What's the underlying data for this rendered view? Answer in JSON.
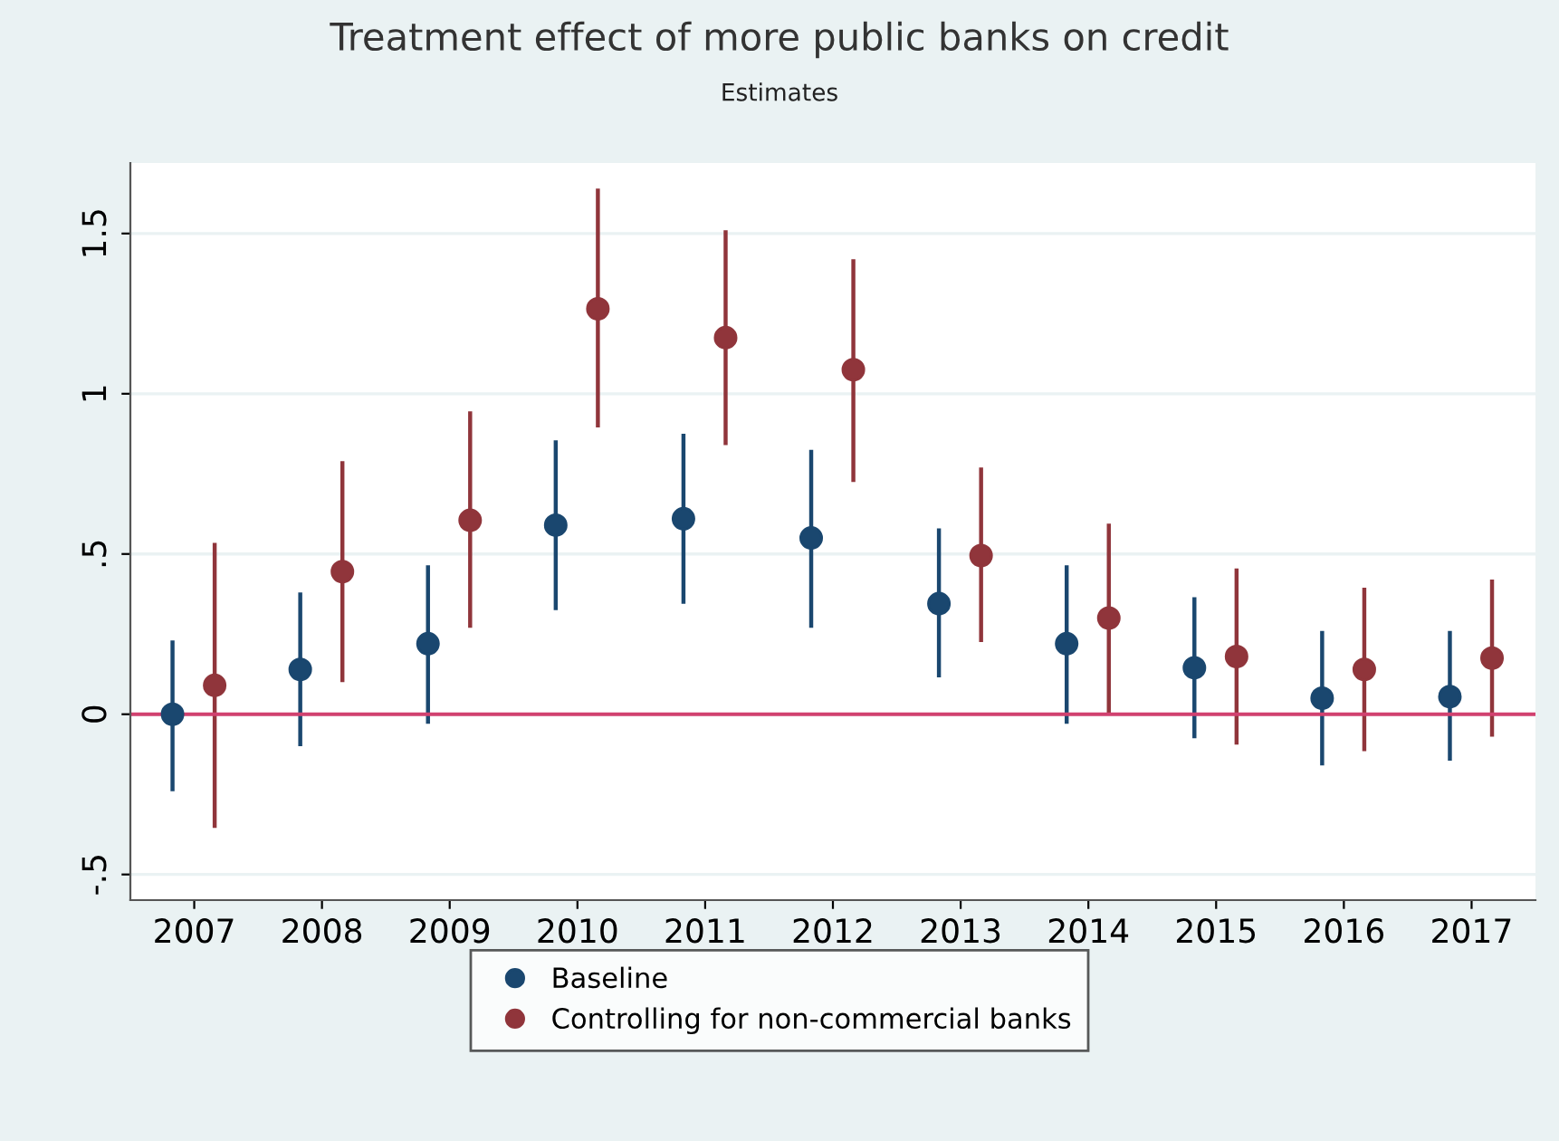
{
  "chart_data": {
    "type": "scatter",
    "title": "Treatment effect of more public banks on credit",
    "subtitle": "Estimates",
    "xlim": [
      2006.5,
      2017.5
    ],
    "xticks": [
      2007,
      2008,
      2009,
      2010,
      2011,
      2012,
      2013,
      2014,
      2015,
      2016,
      2017
    ],
    "ylim": [
      -0.58,
      1.72
    ],
    "yticks": [
      {
        "value": -0.5,
        "label": "-.5"
      },
      0,
      {
        "value": 0.5,
        "label": ".5"
      },
      1,
      1.5
    ],
    "grid": "y",
    "legend": "bottom",
    "marker": "circle",
    "ref_lines": [
      {
        "axis": "y",
        "value": 0,
        "color": "#d1416f"
      }
    ],
    "series": [
      {
        "name": "Baseline",
        "color": "#1a476f",
        "x": [
          2006.83,
          2007.83,
          2008.83,
          2009.83,
          2010.83,
          2011.83,
          2012.83,
          2013.83,
          2014.83,
          2015.83,
          2016.83
        ],
        "values": [
          0.0,
          0.14,
          0.22,
          0.59,
          0.61,
          0.55,
          0.345,
          0.22,
          0.145,
          0.05,
          0.055
        ],
        "errors": [
          [
            -0.24,
            0.23
          ],
          [
            -0.1,
            0.38
          ],
          [
            -0.03,
            0.465
          ],
          [
            0.325,
            0.855
          ],
          [
            0.345,
            0.875
          ],
          [
            0.27,
            0.825
          ],
          [
            0.115,
            0.58
          ],
          [
            -0.03,
            0.465
          ],
          [
            -0.075,
            0.365
          ],
          [
            -0.16,
            0.26
          ],
          [
            -0.145,
            0.26
          ]
        ]
      },
      {
        "name": "Controlling for non-commercial banks",
        "color": "#90353b",
        "x": [
          2007.16,
          2008.16,
          2009.16,
          2010.16,
          2011.16,
          2012.16,
          2013.16,
          2014.16,
          2015.16,
          2016.16,
          2017.16
        ],
        "values": [
          0.09,
          0.445,
          0.605,
          1.265,
          1.175,
          1.075,
          0.495,
          0.3,
          0.18,
          0.14,
          0.175
        ],
        "errors": [
          [
            -0.355,
            0.535
          ],
          [
            0.1,
            0.79
          ],
          [
            0.27,
            0.945
          ],
          [
            0.895,
            1.64
          ],
          [
            0.84,
            1.51
          ],
          [
            0.725,
            1.42
          ],
          [
            0.225,
            0.77
          ],
          [
            0.0,
            0.595
          ],
          [
            -0.095,
            0.455
          ],
          [
            -0.115,
            0.395
          ],
          [
            -0.07,
            0.42
          ]
        ]
      }
    ]
  }
}
